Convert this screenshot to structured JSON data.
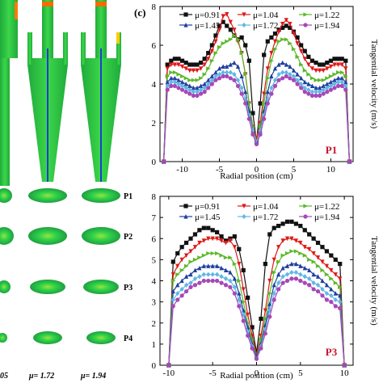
{
  "panel_label": "(c)",
  "left_panel": {
    "plane_labels": [
      "P1",
      "P2",
      "P3",
      "P4"
    ],
    "mu_labels": [
      "05",
      "μ= 1.72",
      "μ= 1.94"
    ]
  },
  "legend": [
    "μ=0.91",
    "μ=1.04",
    "μ=1.22",
    "μ=1.45",
    "μ=1.72",
    "μ=1.94"
  ],
  "colors": {
    "mu091": "#111111",
    "mu104": "#e01818",
    "mu122": "#5cb82a",
    "mu145": "#1f3f9e",
    "mu172": "#5fb7e6",
    "mu194": "#a648b8",
    "plane_label": "#c8102e"
  },
  "chart_data": [
    {
      "type": "line",
      "plane": "P1",
      "xlabel": "Radial position (cm)",
      "ylabel": "Tangential velocity (m/s)",
      "xlim": [
        -13,
        13
      ],
      "ylim": [
        0,
        8
      ],
      "xticks": [
        -10,
        -5,
        0,
        5,
        10
      ],
      "yticks": [
        0,
        2,
        4,
        6,
        8
      ],
      "x": [
        -12.5,
        -12,
        -11.5,
        -11,
        -10.5,
        -10,
        -9.5,
        -9,
        -8.5,
        -8,
        -7.5,
        -7,
        -6.5,
        -6,
        -5.5,
        -5,
        -4.5,
        -4,
        -3.5,
        -3,
        -2.5,
        -2,
        -1.5,
        -1,
        -0.5,
        0,
        0.5,
        1,
        1.5,
        2,
        2.5,
        3,
        3.5,
        4,
        4.5,
        5,
        5.5,
        6,
        6.5,
        7,
        7.5,
        8,
        8.5,
        9,
        9.5,
        10,
        10.5,
        11,
        11.5,
        12,
        12.5
      ],
      "series": [
        {
          "name": "μ=0.91",
          "values": [
            0,
            5,
            5.2,
            5.3,
            5.3,
            5.2,
            5.1,
            5.0,
            5.0,
            5.0,
            5.1,
            5.3,
            5.6,
            6.0,
            6.5,
            7.0,
            7.2,
            7.0,
            6.8,
            6.5,
            6.3,
            6.4,
            6.0,
            5.2,
            2.5,
            1.0,
            3.0,
            5.5,
            6.2,
            6.4,
            6.6,
            6.8,
            6.9,
            7.0,
            6.9,
            6.7,
            6.4,
            6.0,
            5.7,
            5.4,
            5.2,
            5.1,
            5.0,
            5.0,
            5.1,
            5.2,
            5.3,
            5.3,
            5.3,
            5.2,
            0
          ]
        },
        {
          "name": "μ=1.04",
          "values": [
            0,
            4.8,
            5.0,
            5.0,
            5.0,
            4.9,
            4.8,
            4.7,
            4.7,
            4.7,
            4.8,
            5.0,
            5.3,
            5.7,
            6.2,
            6.8,
            7.5,
            7.6,
            7.2,
            6.8,
            6.2,
            5.6,
            4.5,
            3.0,
            1.8,
            1.2,
            2.0,
            3.5,
            4.8,
            5.6,
            6.2,
            6.7,
            7.1,
            7.3,
            7.1,
            6.6,
            6.1,
            5.7,
            5.3,
            5.0,
            4.8,
            4.7,
            4.7,
            4.7,
            4.8,
            4.9,
            5.0,
            5.0,
            5.0,
            4.8,
            0
          ]
        },
        {
          "name": "μ=1.22",
          "values": [
            0,
            4.4,
            4.6,
            4.6,
            4.5,
            4.4,
            4.3,
            4.2,
            4.2,
            4.2,
            4.3,
            4.5,
            4.8,
            5.2,
            5.6,
            5.9,
            6.1,
            6.2,
            6.3,
            6.5,
            6.3,
            5.6,
            4.5,
            3.0,
            1.8,
            1.0,
            1.8,
            3.0,
            4.3,
            5.2,
            5.8,
            6.2,
            6.3,
            6.3,
            6.1,
            5.8,
            5.4,
            5.0,
            4.7,
            4.5,
            4.3,
            4.2,
            4.2,
            4.2,
            4.3,
            4.4,
            4.5,
            4.6,
            4.6,
            4.4,
            0
          ]
        },
        {
          "name": "μ=1.45",
          "values": [
            0,
            4.1,
            4.3,
            4.3,
            4.2,
            4.1,
            4.0,
            3.9,
            3.8,
            3.8,
            3.9,
            4.0,
            4.2,
            4.4,
            4.6,
            4.8,
            4.9,
            4.9,
            5.0,
            5.1,
            4.9,
            4.4,
            3.6,
            2.6,
            1.6,
            1.0,
            1.6,
            2.6,
            3.6,
            4.4,
            4.8,
            5.0,
            5.1,
            5.0,
            4.9,
            4.7,
            4.5,
            4.3,
            4.1,
            4.0,
            3.9,
            3.8,
            3.8,
            3.9,
            4.0,
            4.1,
            4.2,
            4.3,
            4.3,
            4.1,
            0
          ]
        },
        {
          "name": "μ=1.72",
          "values": [
            0,
            3.9,
            4.1,
            4.1,
            4.0,
            3.9,
            3.8,
            3.7,
            3.6,
            3.6,
            3.7,
            3.8,
            4.0,
            4.2,
            4.4,
            4.5,
            4.6,
            4.6,
            4.6,
            4.5,
            4.2,
            3.8,
            3.2,
            2.4,
            1.6,
            1.0,
            1.6,
            2.4,
            3.2,
            3.8,
            4.2,
            4.5,
            4.6,
            4.6,
            4.5,
            4.4,
            4.2,
            4.0,
            3.8,
            3.7,
            3.6,
            3.6,
            3.6,
            3.7,
            3.8,
            3.9,
            4.0,
            4.1,
            4.1,
            3.9,
            0
          ]
        },
        {
          "name": "μ=1.94",
          "values": [
            0,
            3.7,
            3.9,
            3.9,
            3.8,
            3.7,
            3.6,
            3.5,
            3.4,
            3.4,
            3.5,
            3.6,
            3.8,
            4.0,
            4.2,
            4.3,
            4.4,
            4.4,
            4.3,
            4.2,
            3.9,
            3.5,
            3.0,
            2.2,
            1.4,
            0.9,
            1.4,
            2.2,
            3.0,
            3.5,
            3.9,
            4.2,
            4.3,
            4.4,
            4.3,
            4.2,
            4.0,
            3.8,
            3.6,
            3.5,
            3.4,
            3.4,
            3.4,
            3.5,
            3.6,
            3.7,
            3.8,
            3.9,
            3.9,
            3.7,
            0
          ]
        }
      ]
    },
    {
      "type": "line",
      "plane": "P3",
      "xlabel": "Radial position (cm)",
      "ylabel": "Tangential velocity (m/s)",
      "xlim": [
        -11,
        11
      ],
      "ylim": [
        0,
        8
      ],
      "xticks": [
        -10,
        -5,
        0,
        5,
        10
      ],
      "yticks": [
        0,
        1,
        2,
        3,
        4,
        5,
        6,
        7,
        8
      ],
      "x": [
        -10,
        -9.5,
        -9,
        -8.5,
        -8,
        -7.5,
        -7,
        -6.5,
        -6,
        -5.5,
        -5,
        -4.5,
        -4,
        -3.5,
        -3,
        -2.5,
        -2,
        -1.5,
        -1,
        -0.5,
        0,
        0.5,
        1,
        1.5,
        2,
        2.5,
        3,
        3.5,
        4,
        4.5,
        5,
        5.5,
        6,
        6.5,
        7,
        7.5,
        8,
        8.5,
        9,
        9.5,
        10
      ],
      "series": [
        {
          "name": "μ=0.91",
          "values": [
            0,
            4.9,
            5.3,
            5.6,
            5.8,
            6.0,
            6.2,
            6.4,
            6.5,
            6.5,
            6.4,
            6.3,
            6.1,
            5.9,
            6.0,
            6.1,
            5.5,
            4.5,
            3.2,
            1.8,
            0.6,
            2.2,
            4.8,
            6.2,
            6.5,
            6.6,
            6.7,
            6.8,
            6.8,
            6.7,
            6.6,
            6.4,
            6.2,
            6.0,
            5.8,
            5.6,
            5.4,
            5.2,
            5.0,
            4.8,
            0
          ]
        },
        {
          "name": "μ=1.04",
          "values": [
            0,
            4.3,
            4.7,
            5.0,
            5.2,
            5.4,
            5.6,
            5.8,
            5.9,
            6.0,
            6.0,
            6.0,
            5.9,
            5.8,
            5.9,
            5.6,
            4.8,
            3.6,
            2.4,
            1.4,
            0.5,
            1.4,
            2.6,
            4.0,
            5.0,
            5.6,
            5.9,
            6.0,
            6.0,
            5.9,
            5.8,
            5.6,
            5.5,
            5.3,
            5.1,
            4.9,
            4.7,
            4.5,
            4.3,
            4.1,
            0
          ]
        },
        {
          "name": "μ=1.22",
          "values": [
            0,
            4.0,
            4.3,
            4.5,
            4.7,
            4.9,
            5.0,
            5.1,
            5.2,
            5.3,
            5.3,
            5.3,
            5.2,
            5.1,
            5.1,
            4.8,
            4.0,
            3.0,
            2.0,
            1.2,
            0.4,
            1.2,
            2.2,
            3.4,
            4.4,
            4.9,
            5.2,
            5.3,
            5.4,
            5.4,
            5.3,
            5.2,
            5.0,
            4.9,
            4.7,
            4.5,
            4.3,
            4.1,
            3.9,
            3.7,
            0
          ]
        },
        {
          "name": "μ=1.45",
          "values": [
            0,
            3.5,
            3.8,
            4.0,
            4.2,
            4.3,
            4.5,
            4.6,
            4.7,
            4.7,
            4.7,
            4.7,
            4.6,
            4.5,
            4.4,
            4.1,
            3.4,
            2.6,
            1.8,
            1.0,
            0.4,
            1.0,
            1.9,
            2.9,
            3.8,
            4.3,
            4.6,
            4.7,
            4.8,
            4.8,
            4.7,
            4.6,
            4.5,
            4.3,
            4.2,
            4.0,
            3.8,
            3.6,
            3.4,
            3.3,
            0
          ]
        },
        {
          "name": "μ=1.72",
          "values": [
            0,
            3.1,
            3.4,
            3.6,
            3.8,
            3.9,
            4.1,
            4.2,
            4.3,
            4.3,
            4.3,
            4.3,
            4.2,
            4.1,
            4.0,
            3.7,
            3.1,
            2.4,
            1.6,
            0.9,
            0.3,
            0.9,
            1.7,
            2.6,
            3.4,
            3.9,
            4.2,
            4.3,
            4.4,
            4.4,
            4.3,
            4.2,
            4.1,
            3.9,
            3.8,
            3.6,
            3.4,
            3.3,
            3.1,
            3.0,
            0
          ]
        },
        {
          "name": "μ=1.94",
          "values": [
            0,
            2.8,
            3.1,
            3.3,
            3.5,
            3.7,
            3.8,
            3.9,
            4.0,
            4.0,
            4.0,
            4.0,
            3.9,
            3.8,
            3.7,
            3.4,
            2.8,
            2.1,
            1.4,
            0.8,
            0.3,
            0.8,
            1.5,
            2.3,
            3.1,
            3.6,
            3.9,
            4.0,
            4.1,
            4.1,
            4.0,
            3.9,
            3.8,
            3.6,
            3.5,
            3.3,
            3.1,
            3.0,
            2.8,
            2.7,
            0
          ]
        }
      ]
    }
  ]
}
